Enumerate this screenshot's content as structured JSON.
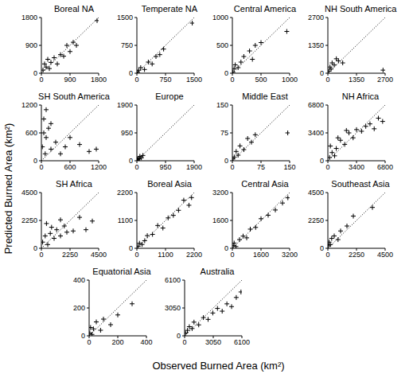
{
  "xlabel": "Observed Burned Area (km²)",
  "ylabel": "Predicted Burned Area (km²)",
  "chart_data": [
    {
      "type": "scatter",
      "title": "Boreal NA",
      "marker": "plus",
      "color": "#000000",
      "x": [
        50,
        100,
        150,
        200,
        250,
        300,
        400,
        500,
        600,
        700,
        800,
        900,
        1000,
        1100,
        1750
      ],
      "values": [
        100,
        300,
        200,
        450,
        150,
        350,
        500,
        300,
        600,
        550,
        900,
        700,
        1000,
        900,
        1700
      ],
      "xlim": [
        0,
        1800
      ],
      "ylim": [
        0,
        1800
      ],
      "xticks": [
        0,
        900,
        1800
      ],
      "yticks": [
        0,
        900,
        1800
      ]
    },
    {
      "type": "scatter",
      "title": "Temperate NA",
      "marker": "plus",
      "color": "#000000",
      "x": [
        20,
        50,
        100,
        200,
        300,
        400,
        500,
        600,
        700,
        1450
      ],
      "values": [
        30,
        80,
        150,
        100,
        300,
        250,
        450,
        500,
        650,
        1350
      ],
      "xlim": [
        0,
        1500
      ],
      "ylim": [
        0,
        1500
      ],
      "xticks": [
        0,
        750,
        1500
      ],
      "yticks": [
        0,
        750,
        1500
      ]
    },
    {
      "type": "scatter",
      "title": "Central America",
      "marker": "plus",
      "color": "#000000",
      "x": [
        10,
        30,
        50,
        100,
        150,
        200,
        300,
        350,
        400,
        500,
        950
      ],
      "values": [
        20,
        80,
        150,
        100,
        200,
        300,
        400,
        250,
        500,
        550,
        750
      ],
      "xlim": [
        0,
        1000
      ],
      "ylim": [
        0,
        1000
      ],
      "xticks": [
        0,
        500,
        1000
      ],
      "yticks": [
        0,
        500,
        1000
      ]
    },
    {
      "type": "scatter",
      "title": "NH South America",
      "marker": "plus",
      "color": "#000000",
      "x": [
        50,
        100,
        150,
        200,
        300,
        400,
        500,
        700,
        2600
      ],
      "values": [
        100,
        300,
        200,
        500,
        400,
        700,
        600,
        500,
        150
      ],
      "xlim": [
        0,
        2700
      ],
      "ylim": [
        0,
        2700
      ],
      "xticks": [
        0,
        1350,
        2700
      ],
      "yticks": [
        0,
        1350,
        2700
      ]
    },
    {
      "type": "scatter",
      "title": "SH South America",
      "marker": "plus",
      "color": "#000000",
      "x": [
        20,
        50,
        80,
        100,
        150,
        200,
        300,
        400,
        500,
        600,
        800,
        1000,
        1150,
        50,
        100,
        200
      ],
      "values": [
        300,
        600,
        150,
        500,
        700,
        250,
        400,
        150,
        300,
        500,
        350,
        200,
        250,
        900,
        1100,
        800
      ],
      "xlim": [
        0,
        1200
      ],
      "ylim": [
        0,
        1200
      ],
      "xticks": [
        0,
        600,
        1200
      ],
      "yticks": [
        0,
        600,
        1200
      ]
    },
    {
      "type": "scatter",
      "title": "Europe",
      "marker": "plus",
      "color": "#000000",
      "x": [
        10,
        20,
        30,
        50,
        80,
        100,
        150,
        200
      ],
      "values": [
        20,
        50,
        30,
        80,
        60,
        150,
        100,
        180
      ],
      "xlim": [
        0,
        1900
      ],
      "ylim": [
        0,
        1900
      ],
      "xticks": [
        0,
        950,
        1900
      ],
      "yticks": [
        0,
        950,
        1900
      ]
    },
    {
      "type": "scatter",
      "title": "Middle East",
      "marker": "plus",
      "color": "#000000",
      "x": [
        2,
        5,
        10,
        15,
        20,
        30,
        40,
        50,
        60,
        145
      ],
      "values": [
        5,
        10,
        25,
        15,
        40,
        30,
        60,
        50,
        70,
        75
      ],
      "xlim": [
        0,
        150
      ],
      "ylim": [
        0,
        150
      ],
      "xticks": [
        0,
        75,
        150
      ],
      "yticks": [
        0,
        75,
        150
      ]
    },
    {
      "type": "scatter",
      "title": "NH Africa",
      "marker": "plus",
      "color": "#000000",
      "x": [
        200,
        500,
        800,
        1000,
        1500,
        2000,
        2500,
        3000,
        3400,
        4000,
        4500,
        5000,
        5500,
        6000,
        6500,
        300,
        1200,
        2200
      ],
      "values": [
        400,
        1000,
        600,
        1500,
        2500,
        2000,
        3400,
        2800,
        3800,
        3600,
        4200,
        4500,
        3900,
        5200,
        4800,
        1800,
        2800,
        3700
      ],
      "xlim": [
        0,
        6800
      ],
      "ylim": [
        0,
        6800
      ],
      "xticks": [
        0,
        3400,
        6800
      ],
      "yticks": [
        0,
        3400,
        6800
      ]
    },
    {
      "type": "scatter",
      "title": "SH Africa",
      "marker": "plus",
      "color": "#000000",
      "x": [
        100,
        300,
        500,
        700,
        1000,
        1200,
        1500,
        1800,
        2000,
        2500,
        3000,
        3500,
        4000,
        400,
        800,
        1500
      ],
      "values": [
        500,
        1000,
        300,
        1200,
        800,
        1500,
        1000,
        1800,
        1300,
        1400,
        2500,
        1500,
        2200,
        2000,
        1700,
        2300
      ],
      "xlim": [
        0,
        4500
      ],
      "ylim": [
        0,
        4500
      ],
      "xticks": [
        0,
        2250,
        4500
      ],
      "yticks": [
        0,
        2250,
        4500
      ]
    },
    {
      "type": "scatter",
      "title": "Boreal Asia",
      "marker": "plus",
      "color": "#000000",
      "x": [
        50,
        100,
        200,
        300,
        400,
        600,
        800,
        1000,
        1200,
        1400,
        1600,
        1800,
        2000,
        2100
      ],
      "values": [
        80,
        200,
        150,
        300,
        500,
        550,
        900,
        800,
        1200,
        1300,
        1500,
        1900,
        1700,
        2000
      ],
      "xlim": [
        0,
        2200
      ],
      "ylim": [
        0,
        2200
      ],
      "xticks": [
        0,
        1100,
        2200
      ],
      "yticks": [
        0,
        1100,
        2200
      ]
    },
    {
      "type": "scatter",
      "title": "Central Asia",
      "marker": "plus",
      "color": "#000000",
      "x": [
        50,
        100,
        200,
        400,
        600,
        800,
        1000,
        1300,
        1600,
        2000,
        2400,
        2800,
        3100
      ],
      "values": [
        150,
        300,
        100,
        500,
        700,
        600,
        1100,
        1200,
        1700,
        1900,
        2200,
        2600,
        2900
      ],
      "xlim": [
        0,
        3200
      ],
      "ylim": [
        0,
        3200
      ],
      "xticks": [
        0,
        1600,
        3200
      ],
      "yticks": [
        0,
        1600,
        3200
      ]
    },
    {
      "type": "scatter",
      "title": "Southeast Asia",
      "marker": "plus",
      "color": "#000000",
      "x": [
        50,
        100,
        200,
        300,
        500,
        800,
        1000,
        1500,
        2000,
        3500
      ],
      "values": [
        200,
        500,
        300,
        800,
        1000,
        700,
        1400,
        1800,
        2600,
        3300
      ],
      "xlim": [
        0,
        4500
      ],
      "ylim": [
        0,
        4500
      ],
      "xticks": [
        0,
        2250,
        4500
      ],
      "yticks": [
        0,
        2250,
        4500
      ]
    },
    {
      "type": "scatter",
      "title": "Equatorial Asia",
      "marker": "plus",
      "color": "#000000",
      "x": [
        5,
        10,
        20,
        30,
        50,
        80,
        100,
        150,
        200,
        300
      ],
      "values": [
        20,
        60,
        10,
        50,
        100,
        40,
        120,
        80,
        150,
        230
      ],
      "xlim": [
        0,
        400
      ],
      "ylim": [
        0,
        400
      ],
      "xticks": [
        0,
        200,
        400
      ],
      "yticks": [
        0,
        200,
        400
      ]
    },
    {
      "type": "scatter",
      "title": "Australia",
      "marker": "plus",
      "color": "#000000",
      "x": [
        100,
        300,
        500,
        800,
        1000,
        1500,
        2000,
        2500,
        3000,
        3500,
        4000,
        4500,
        5000,
        5500,
        6000
      ],
      "values": [
        300,
        600,
        1000,
        800,
        1500,
        1200,
        2000,
        1800,
        2500,
        3000,
        2700,
        3500,
        3200,
        4200,
        4800
      ],
      "xlim": [
        0,
        6100
      ],
      "ylim": [
        0,
        6100
      ],
      "xticks": [
        0,
        3050,
        6100
      ],
      "yticks": [
        0,
        3050,
        6100
      ]
    }
  ]
}
